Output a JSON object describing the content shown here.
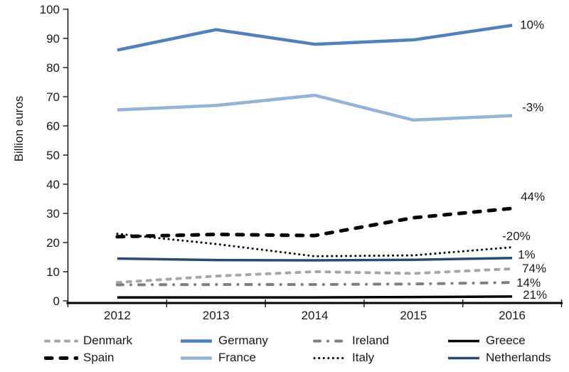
{
  "chart_data": {
    "type": "line",
    "title": "",
    "ylabel": "Billion euros",
    "xlabel": "",
    "ylim": [
      0,
      100
    ],
    "ytick_step": 10,
    "grid": false,
    "legend_position": "bottom",
    "categories": [
      "2012",
      "2013",
      "2014",
      "2015",
      "2016"
    ],
    "series": [
      {
        "name": "Denmark",
        "values": [
          6.3,
          8.5,
          10,
          9.4,
          11
        ],
        "change_label": "74%",
        "color": "#a6a6a6",
        "line_style": "dashed-small",
        "line_width": 4,
        "label_offset": [
          14,
          5
        ]
      },
      {
        "name": "Spain",
        "values": [
          22,
          22.8,
          22.4,
          28.5,
          31.7
        ],
        "change_label": "44%",
        "color": "#000000",
        "line_style": "dashed",
        "line_width": 5,
        "label_offset": [
          12,
          -11
        ]
      },
      {
        "name": "Germany",
        "values": [
          86,
          93,
          88,
          89.5,
          94.5
        ],
        "change_label": "10%",
        "color": "#4f81bd",
        "line_style": "solid",
        "line_width": 4.5,
        "label_offset": [
          11,
          5
        ]
      },
      {
        "name": "France",
        "values": [
          65.5,
          67,
          70.5,
          62,
          63.5
        ],
        "change_label": "-3%",
        "color": "#95b3d7",
        "line_style": "solid",
        "line_width": 4.5,
        "label_offset": [
          14,
          -6
        ]
      },
      {
        "name": "Ireland",
        "values": [
          5.5,
          5.6,
          5.6,
          5.8,
          6.3
        ],
        "change_label": "14%",
        "color": "#7f7f7f",
        "line_style": "dash-dot",
        "line_width": 4,
        "label_offset": [
          6,
          6
        ]
      },
      {
        "name": "Italy",
        "values": [
          23,
          19.5,
          15.3,
          15.6,
          18.4
        ],
        "change_label": "-20%",
        "color": "#000000",
        "line_style": "dotted",
        "line_width": 3,
        "label_offset": [
          -14,
          -10
        ]
      },
      {
        "name": "Greece",
        "values": [
          1.2,
          1.2,
          1.2,
          1.3,
          1.5
        ],
        "change_label": "21%",
        "color": "#000000",
        "line_style": "solid",
        "line_width": 3.5,
        "label_offset": [
          15,
          3
        ]
      },
      {
        "name": "Netherlands",
        "values": [
          14.5,
          14,
          13.9,
          14.1,
          14.7
        ],
        "change_label": "1%",
        "color": "#2b4a75",
        "line_style": "solid",
        "line_width": 3.5,
        "label_offset": [
          8,
          1
        ]
      }
    ]
  },
  "legend": {
    "order": [
      "Denmark",
      "Germany",
      "Ireland",
      "Greece",
      "Spain",
      "France",
      "Italy",
      "Netherlands"
    ]
  }
}
